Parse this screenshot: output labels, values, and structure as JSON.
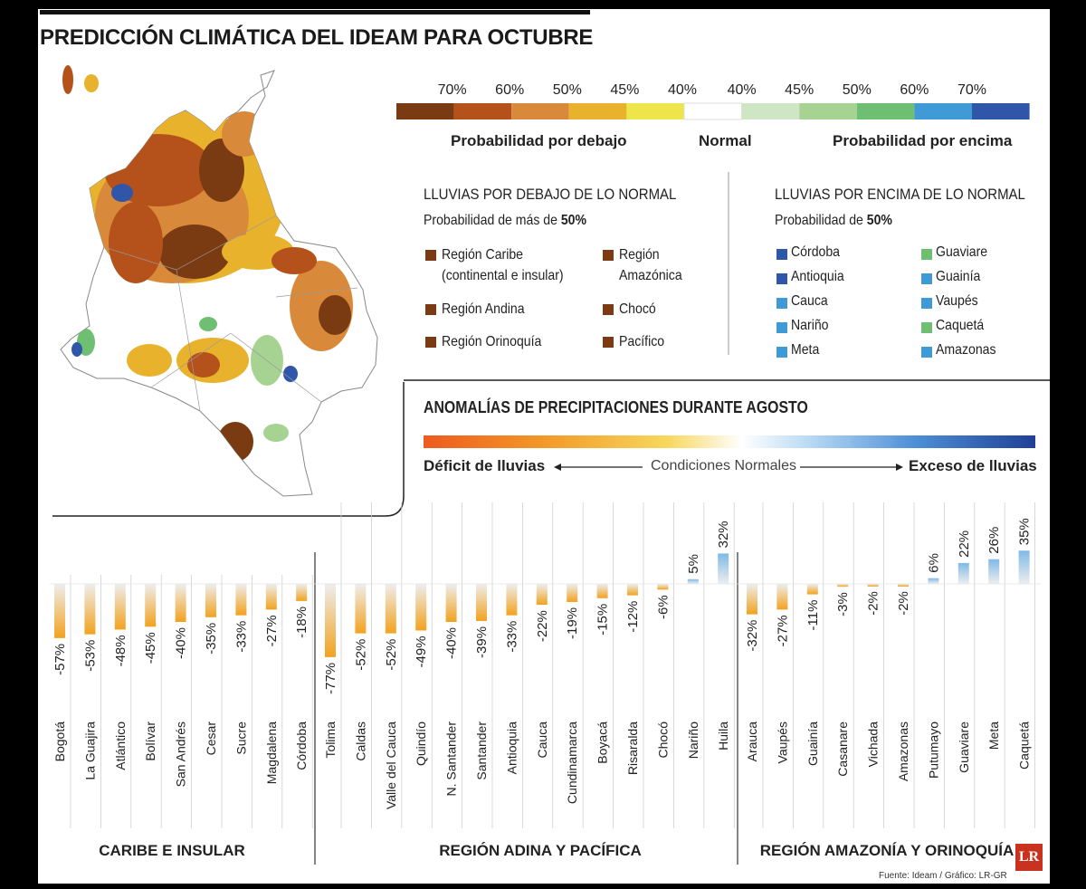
{
  "title": "PREDICCIÓN CLIMÁTICA DEL IDEAM PARA OCTUBRE",
  "probability_scale": {
    "below_labels": [
      "70%",
      "60%",
      "50%",
      "45%",
      "40%"
    ],
    "above_labels": [
      "40%",
      "45%",
      "50%",
      "60%",
      "70%"
    ],
    "colors": [
      "#7a3b12",
      "#b5521c",
      "#d88a3a",
      "#e9b22c",
      "#ede54a",
      "#ffffff",
      "#cfe6c4",
      "#a6d391",
      "#6fbf73",
      "#3f9ad6",
      "#2f56a8"
    ],
    "below_caption": "Probabilidad por debajo",
    "normal_caption": "Normal",
    "above_caption": "Probabilidad por encima"
  },
  "legend_below": {
    "heading": "LLUVIAS POR DEBAJO DE LO NORMAL",
    "prob_prefix": "Probabilidad de más de ",
    "prob_value": "50%",
    "color": "#7a3b12",
    "col1": [
      "Región Caribe\n(continental e insular)",
      "Región Andina",
      "Región Orinoquía"
    ],
    "col2": [
      "Región\nAmazónica",
      "Chocó",
      "Pacífico"
    ]
  },
  "legend_above": {
    "heading": "LLUVIAS POR ENCIMA DE LO NORMAL",
    "prob_prefix": "Probabilidad de ",
    "prob_value": "50%",
    "col1": [
      {
        "name": "Córdoba",
        "color": "#2f56a8"
      },
      {
        "name": "Antioquia",
        "color": "#2f56a8"
      },
      {
        "name": "Cauca",
        "color": "#3f9ad6"
      },
      {
        "name": "Nariño",
        "color": "#3f9ad6"
      },
      {
        "name": "Meta",
        "color": "#3f9ad6"
      }
    ],
    "col2": [
      {
        "name": "Guaviare",
        "color": "#6fbf73"
      },
      {
        "name": "Guainía",
        "color": "#3f9ad6"
      },
      {
        "name": "Vaupés",
        "color": "#3f9ad6"
      },
      {
        "name": "Caquetá",
        "color": "#6fbf73"
      },
      {
        "name": "Amazonas",
        "color": "#3f9ad6"
      }
    ]
  },
  "anomalies": {
    "heading": "ANOMALÍAS DE PRECIPITACIONES DURANTE AGOSTO",
    "deficit": "Déficit de lluvias",
    "normal": "Condiciones Normales",
    "excess": "Exceso de lluvias"
  },
  "chart_data": {
    "type": "bar",
    "title": "ANOMALÍAS DE PRECIPITACIONES DURANTE AGOSTO",
    "unit": "%",
    "groups": [
      {
        "name": "CARIBE E INSULAR",
        "categories": [
          "Bogotá",
          "La Guajira",
          "Atlántico",
          "Bolívar",
          "San Andrés",
          "Cesar",
          "Sucre",
          "Magdalena",
          "Córdoba"
        ],
        "values": [
          -57,
          -53,
          -48,
          -45,
          -40,
          -35,
          -33,
          -27,
          -18
        ]
      },
      {
        "name": "REGIÓN ADINA Y PACÍFICA",
        "categories": [
          "Tolima",
          "Caldas",
          "Valle del Cauca",
          "Quindío",
          "N. Santander",
          "Santander",
          "Antioquia",
          "Cauca",
          "Cundinamarca",
          "Boyacá",
          "Risaralda",
          "Chocó",
          "Nariño",
          "Huila"
        ],
        "values": [
          -77,
          -52,
          -52,
          -49,
          -40,
          -39,
          -33,
          -22,
          -19,
          -15,
          -12,
          -6,
          5,
          32
        ]
      },
      {
        "name": "REGIÓN AMAZONÍA Y ORINOQUÍA",
        "categories": [
          "Arauca",
          "Vaupés",
          "Guainía",
          "Casanare",
          "Vichada",
          "Amazonas",
          "Putumayo",
          "Guaviare",
          "Meta",
          "Caquetá"
        ],
        "values": [
          -32,
          -27,
          -11,
          -3,
          -2,
          -2,
          6,
          22,
          26,
          35
        ]
      }
    ],
    "value_labels": [
      "-57%",
      "-53%",
      "-48%",
      "-45%",
      "-40%",
      "-35%",
      "-33%",
      "-27%",
      "-18%",
      "-77%",
      "-52%",
      "-52%",
      "-49%",
      "-40%",
      "-39%",
      "-33%",
      "-22%",
      "-19%",
      "-15%",
      "-12%",
      "-6%",
      "5%",
      "32%",
      "-32%",
      "-27%",
      "-11%",
      "-3%",
      "-2%",
      "-2%",
      "6%",
      "22%",
      "26%",
      "35%"
    ],
    "negative_color": "#f2a21e",
    "positive_color": "#7fb9e6"
  },
  "source": "Fuente: Ideam / Gráfico: LR-GR",
  "logo": "LR"
}
